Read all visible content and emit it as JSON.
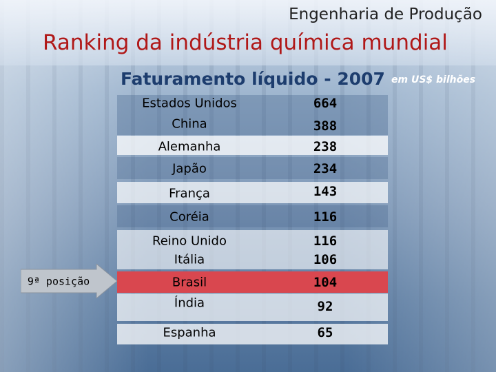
{
  "header": {
    "subtitle": "Engenharia de Produção",
    "title": "Ranking da indústria química mundial"
  },
  "table": {
    "caption": "Faturamento líquido - 2007",
    "unit": "em US$ bilhões",
    "rows": [
      [
        "Estados Unidos",
        664
      ],
      [
        "China",
        388
      ],
      [
        "Alemanha",
        238
      ],
      [
        "Japão",
        234
      ],
      [
        "França",
        143
      ],
      [
        "Coréia",
        116
      ],
      [
        "Reino Unido",
        116
      ],
      [
        "Itália",
        106
      ],
      [
        "Brasil",
        104
      ],
      [
        "Índia",
        92
      ],
      [
        "Espanha",
        65
      ]
    ]
  },
  "callout": "9ª posição"
}
